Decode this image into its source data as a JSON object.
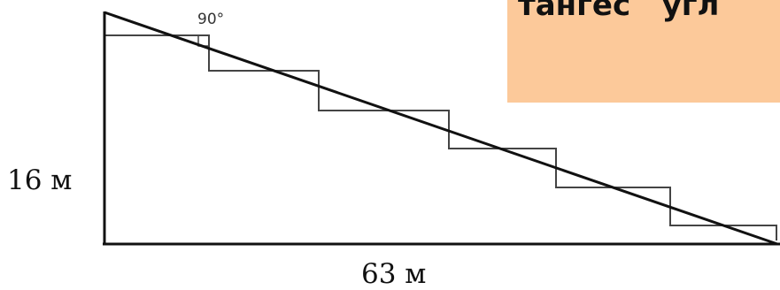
{
  "diagram": {
    "right_angle_label": "90°",
    "height_label": "16 м",
    "base_label": "63 м",
    "colors": {
      "line": "#111111",
      "stairs": "#444444",
      "callout_bg": "#fcc99a"
    }
  },
  "callout": {
    "text": "тангес   угл"
  }
}
